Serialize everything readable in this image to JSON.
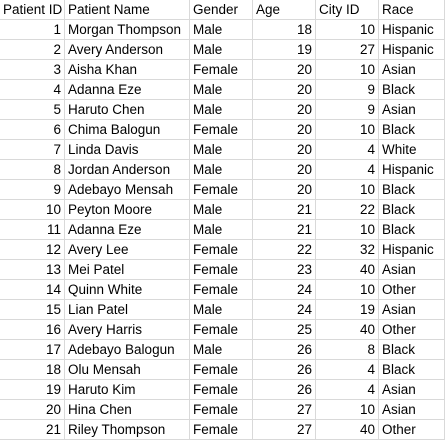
{
  "sheet": {
    "headers": [
      "Patient ID",
      "Patient Name",
      "Gender",
      "Age",
      "City ID",
      "Race"
    ],
    "rows": [
      [
        "1",
        "Morgan Thompson",
        "Male",
        "18",
        "10",
        "Hispanic"
      ],
      [
        "2",
        "Avery Anderson",
        "Male",
        "19",
        "27",
        "Hispanic"
      ],
      [
        "3",
        "Aisha Khan",
        "Female",
        "20",
        "10",
        "Asian"
      ],
      [
        "4",
        "Adanna Eze",
        "Male",
        "20",
        "9",
        "Black"
      ],
      [
        "5",
        "Haruto Chen",
        "Male",
        "20",
        "9",
        "Asian"
      ],
      [
        "6",
        "Chima Balogun",
        "Female",
        "20",
        "10",
        "Black"
      ],
      [
        "7",
        "Linda Davis",
        "Male",
        "20",
        "4",
        "White"
      ],
      [
        "8",
        "Jordan Anderson",
        "Male",
        "20",
        "4",
        "Hispanic"
      ],
      [
        "9",
        "Adebayo Mensah",
        "Female",
        "20",
        "10",
        "Black"
      ],
      [
        "10",
        "Peyton Moore",
        "Male",
        "21",
        "22",
        "Black"
      ],
      [
        "11",
        "Adanna Eze",
        "Male",
        "21",
        "10",
        "Black"
      ],
      [
        "12",
        "Avery Lee",
        "Female",
        "22",
        "32",
        "Hispanic"
      ],
      [
        "13",
        "Mei Patel",
        "Female",
        "23",
        "40",
        "Asian"
      ],
      [
        "14",
        "Quinn White",
        "Female",
        "24",
        "10",
        "Other"
      ],
      [
        "15",
        "Lian Patel",
        "Male",
        "24",
        "19",
        "Asian"
      ],
      [
        "16",
        "Avery Harris",
        "Female",
        "25",
        "40",
        "Other"
      ],
      [
        "17",
        "Adebayo Balogun",
        "Male",
        "26",
        "8",
        "Black"
      ],
      [
        "18",
        "Olu Mensah",
        "Female",
        "26",
        "4",
        "Black"
      ],
      [
        "19",
        "Haruto Kim",
        "Female",
        "26",
        "4",
        "Asian"
      ],
      [
        "20",
        "Hina Chen",
        "Female",
        "27",
        "10",
        "Asian"
      ],
      [
        "21",
        "Riley Thompson",
        "Female",
        "27",
        "40",
        "Other"
      ]
    ]
  }
}
